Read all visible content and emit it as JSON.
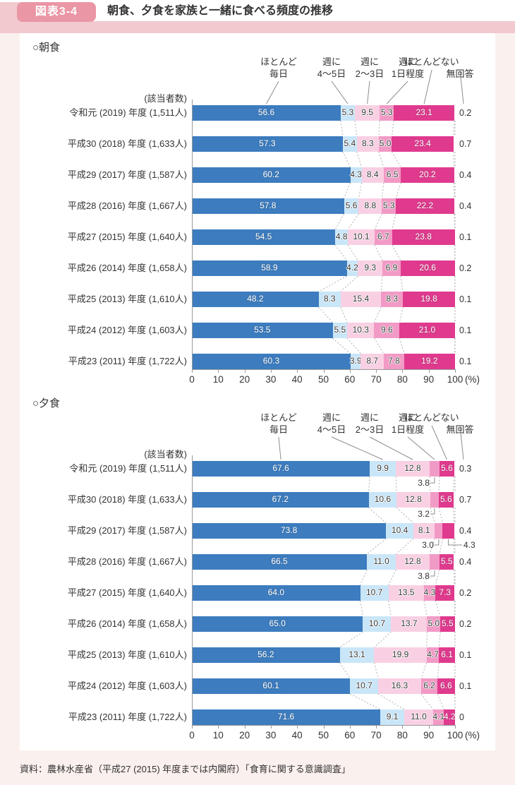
{
  "header": {
    "badge": "図表3-4",
    "title": "朝食、夕食を家族と一緒に食べる頻度の推移"
  },
  "footer": {
    "source": "資料：農林水産省（平成27 (2015) 年度までは内閣府）「食育に関する意識調査」"
  },
  "legend": {
    "items": [
      {
        "name": "ほとんど毎日",
        "lines": [
          "ほとんど",
          "毎日"
        ],
        "color": "#3c7cbf"
      },
      {
        "name": "週に4〜5日",
        "lines": [
          "週に",
          "4〜5日"
        ],
        "color": "#c9e6f8"
      },
      {
        "name": "週に2〜3日",
        "lines": [
          "週に",
          "2〜3日"
        ],
        "color": "#f9d0e3"
      },
      {
        "name": "週に1日程度",
        "lines": [
          "週に",
          "1日程度"
        ],
        "color": "#f29ac6"
      },
      {
        "name": "ほとんどない",
        "lines": [
          "ほとんどない"
        ],
        "color": "#e03a8e"
      },
      {
        "name": "無回答",
        "lines": [
          "",
          "無回答"
        ],
        "color": "#ffffff"
      }
    ]
  },
  "chart_data": [
    {
      "type": "bar",
      "orientation": "horizontal",
      "stacked": true,
      "section_label": "○朝食",
      "respondents_header": "(該当者数)",
      "unit": "(%)",
      "xlim": [
        0,
        100
      ],
      "xticks": [
        0,
        10,
        20,
        30,
        40,
        50,
        60,
        70,
        80,
        90,
        100
      ],
      "series_names": [
        "ほとんど毎日",
        "週に4〜5日",
        "週に2〜3日",
        "週に1日程度",
        "ほとんどない",
        "無回答"
      ],
      "rows": [
        {
          "label": "令和元 (2019) 年度 (1,511人)",
          "values": [
            56.6,
            5.3,
            9.5,
            5.3,
            23.1
          ],
          "no_answer": 0.2
        },
        {
          "label": "平成30 (2018) 年度 (1,633人)",
          "values": [
            57.3,
            5.4,
            8.3,
            5.0,
            23.4
          ],
          "no_answer": 0.7
        },
        {
          "label": "平成29 (2017) 年度 (1,587人)",
          "values": [
            60.2,
            4.3,
            8.4,
            6.5,
            20.2
          ],
          "no_answer": 0.4
        },
        {
          "label": "平成28 (2016) 年度 (1,667人)",
          "values": [
            57.8,
            5.6,
            8.8,
            5.3,
            22.2
          ],
          "no_answer": 0.4
        },
        {
          "label": "平成27 (2015) 年度 (1,640人)",
          "values": [
            54.5,
            4.8,
            10.1,
            6.7,
            23.8
          ],
          "no_answer": 0.1
        },
        {
          "label": "平成26 (2014) 年度 (1,658人)",
          "values": [
            58.9,
            4.2,
            9.3,
            6.9,
            20.6
          ],
          "no_answer": 0.2
        },
        {
          "label": "平成25 (2013) 年度 (1,610人)",
          "values": [
            48.2,
            8.3,
            15.4,
            8.3,
            19.8
          ],
          "no_answer": 0.1
        },
        {
          "label": "平成24 (2012) 年度 (1,603人)",
          "values": [
            53.5,
            5.5,
            10.3,
            9.6,
            21.0
          ],
          "no_answer": 0.1
        },
        {
          "label": "平成23 (2011) 年度 (1,722人)",
          "values": [
            60.3,
            3.9,
            8.7,
            7.8,
            19.2
          ],
          "no_answer": 0.1
        }
      ]
    },
    {
      "type": "bar",
      "orientation": "horizontal",
      "stacked": true,
      "section_label": "○夕食",
      "respondents_header": "(該当者数)",
      "unit": "(%)",
      "xlim": [
        0,
        100
      ],
      "xticks": [
        0,
        10,
        20,
        30,
        40,
        50,
        60,
        70,
        80,
        90,
        100
      ],
      "series_names": [
        "ほとんど毎日",
        "週に4〜5日",
        "週に2〜3日",
        "週に1日程度",
        "ほとんどない",
        "無回答"
      ],
      "rows": [
        {
          "label": "令和元 (2019) 年度 (1,511人)",
          "values": [
            67.6,
            9.9,
            12.8,
            3.8,
            5.6
          ],
          "no_answer": 0.3,
          "below": [
            3
          ]
        },
        {
          "label": "平成30 (2018) 年度 (1,633人)",
          "values": [
            67.2,
            10.6,
            12.8,
            3.2,
            5.6
          ],
          "no_answer": 0.7,
          "below": [
            3
          ]
        },
        {
          "label": "平成29 (2017) 年度 (1,587人)",
          "values": [
            73.8,
            10.4,
            8.1,
            3.0,
            4.3
          ],
          "no_answer": 0.4,
          "below": [
            3,
            4
          ]
        },
        {
          "label": "平成28 (2016) 年度 (1,667人)",
          "values": [
            66.5,
            11.0,
            12.8,
            3.8,
            5.5
          ],
          "no_answer": 0.4,
          "below": [
            3
          ]
        },
        {
          "label": "平成27 (2015) 年度 (1,640人)",
          "values": [
            64.0,
            10.7,
            13.5,
            4.3,
            7.3
          ],
          "no_answer": 0.2
        },
        {
          "label": "平成26 (2014) 年度 (1,658人)",
          "values": [
            65.0,
            10.7,
            13.7,
            5.0,
            5.5
          ],
          "no_answer": 0.2
        },
        {
          "label": "平成25 (2013) 年度 (1,610人)",
          "values": [
            56.2,
            13.1,
            19.9,
            4.7,
            6.1
          ],
          "no_answer": 0.1
        },
        {
          "label": "平成24 (2012) 年度 (1,603人)",
          "values": [
            60.1,
            10.7,
            16.3,
            6.2,
            6.6
          ],
          "no_answer": 0.1
        },
        {
          "label": "平成23 (2011) 年度 (1,722人)",
          "values": [
            71.6,
            9.1,
            11.0,
            4.1,
            4.2
          ],
          "no_answer": 0
        }
      ]
    }
  ],
  "colors": {
    "page_bg": "#faf0ee",
    "panel_bg": "#ffffff",
    "band_pink": "#f1c9cf",
    "badge_pink": "#ea96a5",
    "bar_blue": "#3c7cbf",
    "bar_light_blue": "#c9e6f8",
    "bar_light_pink": "#f9d0e3",
    "bar_medium_pink": "#f29ac6",
    "bar_dark_pink": "#e03a8e",
    "text": "#333333",
    "axis_gray": "#999999",
    "connector_gray": "#b0b0b0"
  }
}
